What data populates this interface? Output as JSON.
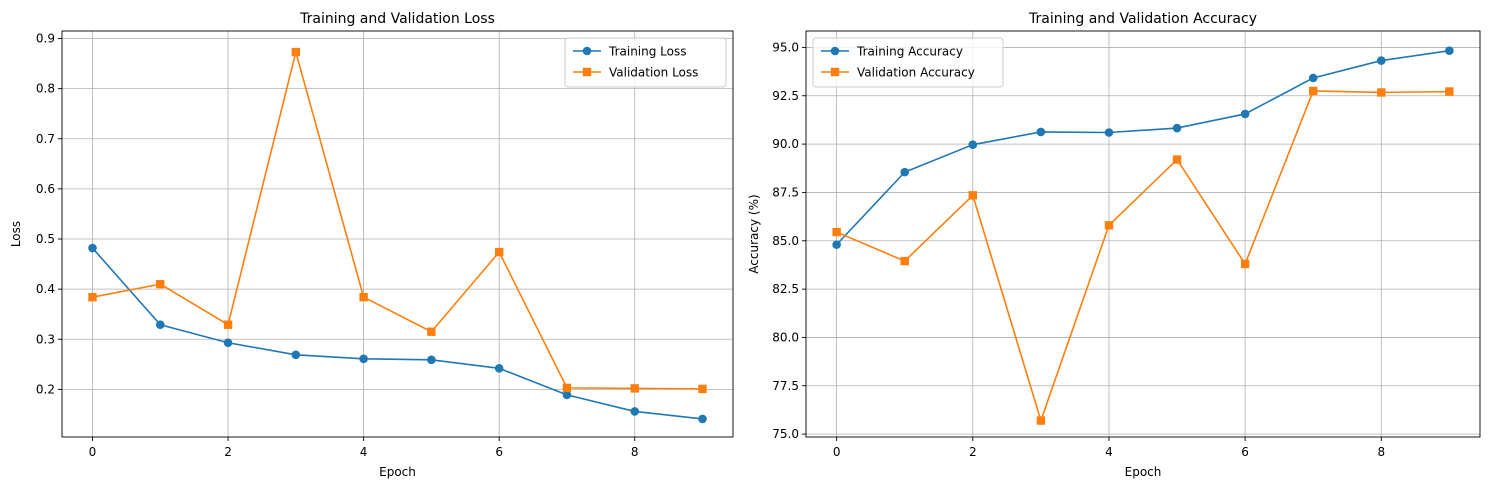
{
  "chart_data": [
    {
      "type": "line",
      "title": "Training and Validation Loss",
      "xlabel": "Epoch",
      "ylabel": "Loss",
      "x": [
        0,
        1,
        2,
        3,
        4,
        5,
        6,
        7,
        8,
        9
      ],
      "xlim": [
        -0.45,
        9.45
      ],
      "ylim": [
        0.105,
        0.915
      ],
      "xticks": [
        0,
        2,
        4,
        6,
        8
      ],
      "yticks": [
        0.2,
        0.3,
        0.4,
        0.5,
        0.6,
        0.7,
        0.8,
        0.9
      ],
      "ytick_labels": [
        "0.2",
        "0.3",
        "0.4",
        "0.5",
        "0.6",
        "0.7",
        "0.8",
        "0.9"
      ],
      "grid": true,
      "legend": "upper right",
      "series": [
        {
          "name": "Training Loss",
          "color": "#1f77b4",
          "marker": "circle",
          "values": [
            0.482,
            0.329,
            0.293,
            0.269,
            0.261,
            0.259,
            0.242,
            0.189,
            0.156,
            0.141
          ]
        },
        {
          "name": "Validation Loss",
          "color": "#ff7f0e",
          "marker": "square",
          "values": [
            0.384,
            0.41,
            0.329,
            0.873,
            0.384,
            0.315,
            0.474,
            0.203,
            0.202,
            0.201
          ]
        }
      ]
    },
    {
      "type": "line",
      "title": "Training and Validation Accuracy",
      "xlabel": "Epoch",
      "ylabel": "Accuracy (%)",
      "x": [
        0,
        1,
        2,
        3,
        4,
        5,
        6,
        7,
        8,
        9
      ],
      "xlim": [
        -0.45,
        9.45
      ],
      "ylim": [
        74.85,
        95.85
      ],
      "xticks": [
        0,
        2,
        4,
        6,
        8
      ],
      "yticks": [
        75.0,
        77.5,
        80.0,
        82.5,
        85.0,
        87.5,
        90.0,
        92.5,
        95.0
      ],
      "ytick_labels": [
        "75.0",
        "77.5",
        "80.0",
        "82.5",
        "85.0",
        "87.5",
        "90.0",
        "92.5",
        "95.0"
      ],
      "grid": true,
      "legend": "upper left",
      "series": [
        {
          "name": "Training Accuracy",
          "color": "#1f77b4",
          "marker": "circle",
          "values": [
            84.8,
            88.55,
            89.97,
            90.63,
            90.6,
            90.83,
            91.56,
            93.42,
            94.32,
            94.83
          ]
        },
        {
          "name": "Validation Accuracy",
          "color": "#ff7f0e",
          "marker": "square",
          "values": [
            85.45,
            83.95,
            87.35,
            75.7,
            85.8,
            89.2,
            83.8,
            92.75,
            92.67,
            92.72
          ]
        }
      ]
    }
  ]
}
